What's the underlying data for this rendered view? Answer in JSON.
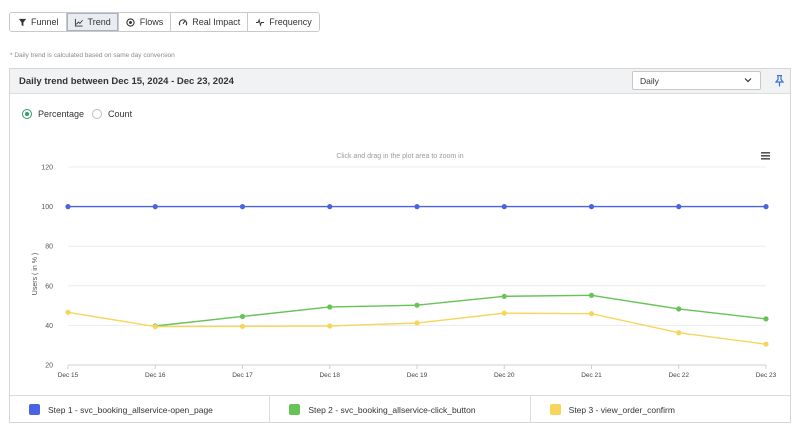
{
  "tabs": [
    {
      "label": "Funnel",
      "icon": "funnel-icon",
      "active": false
    },
    {
      "label": "Trend",
      "icon": "trend-icon",
      "active": true
    },
    {
      "label": "Flows",
      "icon": "flows-icon",
      "active": false
    },
    {
      "label": "Real Impact",
      "icon": "gauge-icon",
      "active": false
    },
    {
      "label": "Frequency",
      "icon": "pulse-icon",
      "active": false
    }
  ],
  "note": "* Daily trend is calculated based on same day conversion",
  "panel": {
    "title": "Daily trend between Dec 15, 2024 - Dec 23, 2024",
    "interval_selected": "Daily"
  },
  "mode": {
    "options": [
      "Percentage",
      "Count"
    ],
    "selected": "Percentage"
  },
  "chart_hint": "Click and drag in the plot area to zoom in",
  "colors": {
    "step1": "#4a63e0",
    "step2": "#66c356",
    "step3": "#f7d55c",
    "selected_radio": "#2f9e6a"
  },
  "chart_data": {
    "type": "line",
    "title": "",
    "xlabel": "",
    "ylabel": "Users ( in % )",
    "ylim": [
      20,
      120
    ],
    "yticks": [
      20,
      40,
      60,
      80,
      100,
      120
    ],
    "categories": [
      "Dec 15",
      "Dec 16",
      "Dec 17",
      "Dec 18",
      "Dec 19",
      "Dec 20",
      "Dec 21",
      "Dec 22",
      "Dec 23"
    ],
    "grid": true,
    "legend_position": "bottom",
    "series": [
      {
        "name": "Step 1 - svc_booking_allservice-open_page",
        "color": "#4a63e0",
        "values": [
          100,
          100,
          100,
          100,
          100,
          100,
          100,
          100,
          100
        ]
      },
      {
        "name": "Step 2 - svc_booking_allservice-click_button",
        "color": "#66c356",
        "values": [
          null,
          39.7,
          44.5,
          49.3,
          50.2,
          54.7,
          55.2,
          48.3,
          43.3
        ]
      },
      {
        "name": "Step 3 - view_order_confirm",
        "color": "#f7d55c",
        "values": [
          46.6,
          39.4,
          39.5,
          39.7,
          41.2,
          46.2,
          45.9,
          36.3,
          30.5
        ]
      }
    ]
  }
}
